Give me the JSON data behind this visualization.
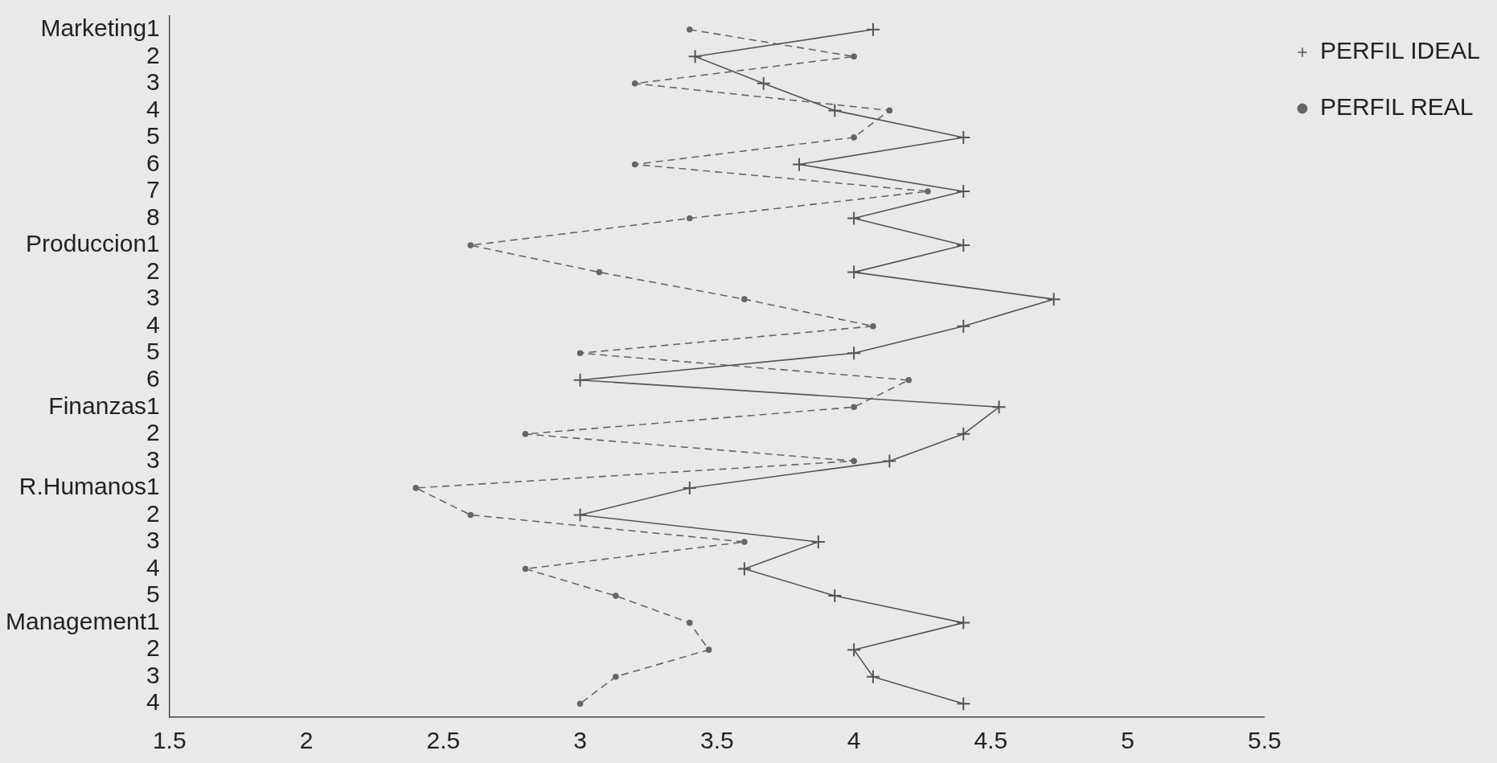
{
  "chart_data": {
    "type": "line",
    "orientation": "horizontal",
    "categories": [
      "Marketing1",
      "2",
      "3",
      "4",
      "5",
      "6",
      "7",
      "8",
      "Produccion1",
      "2",
      "3",
      "4",
      "5",
      "6",
      "Finanzas1",
      "2",
      "3",
      "R.Humanos1",
      "2",
      "3",
      "4",
      "5",
      "Management1",
      "2",
      "3",
      "4"
    ],
    "series": [
      {
        "name": "PERFIL IDEAL",
        "color": "#555555",
        "marker": "cross",
        "line_style": "solid",
        "values": [
          4.07,
          3.42,
          3.67,
          3.93,
          4.4,
          3.8,
          4.4,
          4.0,
          4.4,
          4.0,
          4.73,
          4.4,
          4.0,
          3.0,
          4.53,
          4.4,
          4.13,
          3.4,
          3.0,
          3.87,
          3.6,
          3.93,
          4.4,
          4.0,
          4.07,
          4.4
        ]
      },
      {
        "name": "PERFIL REAL",
        "color": "#666666",
        "marker": "circle",
        "line_style": "dashed",
        "values": [
          3.4,
          4.0,
          3.2,
          4.13,
          4.0,
          3.2,
          4.27,
          3.4,
          2.6,
          3.07,
          3.6,
          4.07,
          3.0,
          4.2,
          4.0,
          2.8,
          4.0,
          2.4,
          2.6,
          3.6,
          2.8,
          3.13,
          3.4,
          3.47,
          3.13,
          3.0
        ]
      }
    ],
    "xlim": [
      1.5,
      5.5
    ],
    "xticks": [
      1.5,
      2,
      2.5,
      3,
      3.5,
      4,
      4.5,
      5,
      5.5
    ],
    "grid": false,
    "legend": "top right"
  }
}
